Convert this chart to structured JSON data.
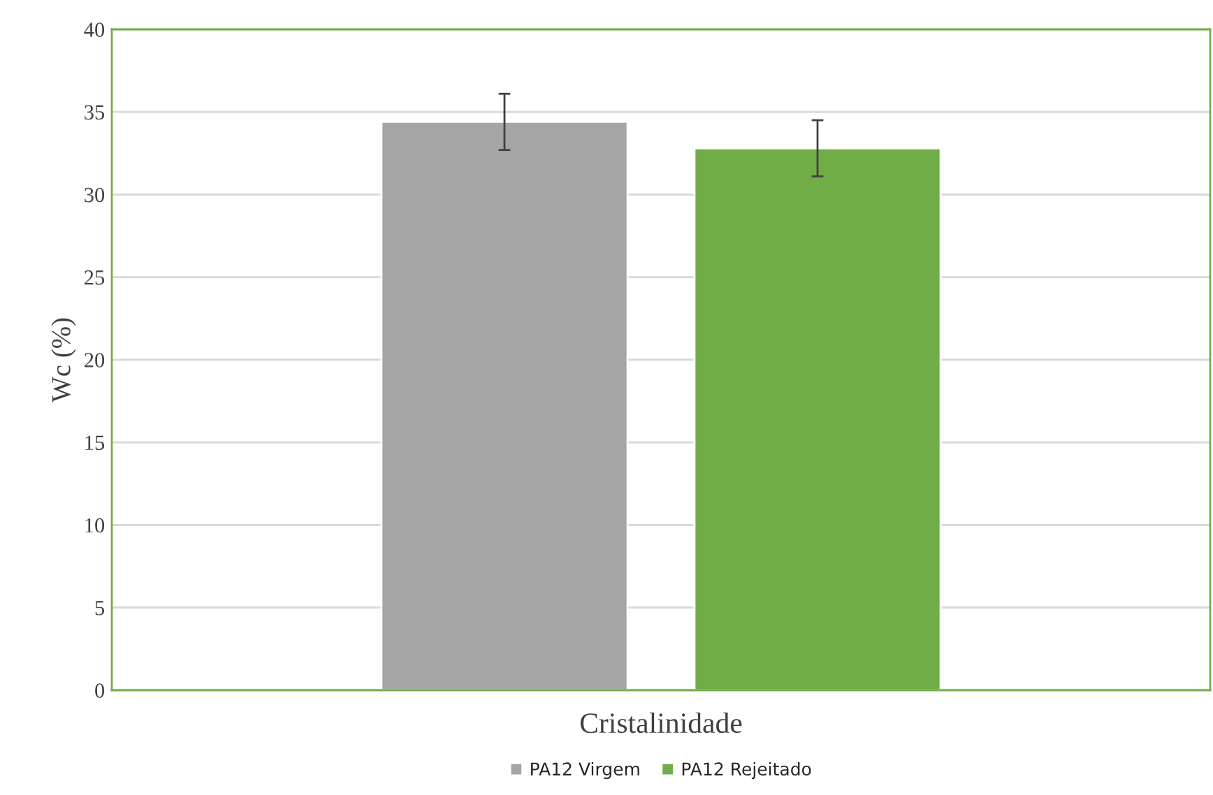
{
  "chart_data": {
    "type": "bar",
    "xlabel": "Cristalinidade",
    "ylabel": "Wc (%)",
    "categories": [
      null
    ],
    "series": [
      {
        "name": "PA12 Virgem",
        "color": "#a5a5a5",
        "values": [
          34.4
        ],
        "errors": [
          1.7
        ]
      },
      {
        "name": "PA12 Rejeitado",
        "color": "#70ad47",
        "values": [
          32.8
        ],
        "errors": [
          1.7
        ]
      }
    ],
    "ylim": [
      0,
      40
    ],
    "yticks": [
      0,
      5,
      10,
      15,
      20,
      25,
      30,
      35,
      40
    ],
    "grid": "y",
    "legend": "bottom"
  }
}
